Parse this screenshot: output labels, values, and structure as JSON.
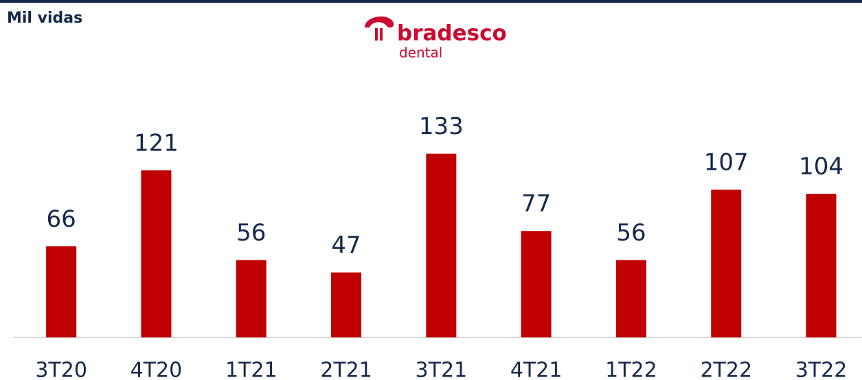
{
  "header": {
    "unit": "Mil vidas",
    "logo_brand": "bradesco",
    "logo_sub": "dental"
  },
  "chart_data": {
    "type": "bar",
    "categories": [
      "3T20",
      "4T20",
      "1T21",
      "2T21",
      "3T21",
      "4T21",
      "1T22",
      "2T22",
      "3T22"
    ],
    "values": [
      66,
      121,
      56,
      47,
      133,
      77,
      56,
      107,
      104
    ],
    "color": "#c00000",
    "ylim": [
      0,
      140
    ]
  }
}
